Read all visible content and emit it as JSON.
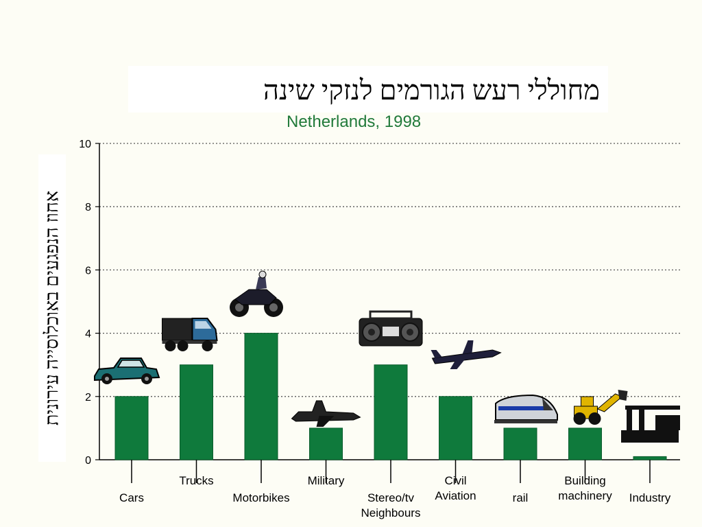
{
  "colors": {
    "bar": "#0f7a3c",
    "bar_dark": "#0a5c2c",
    "subtitle": "#217a3a",
    "grid": "#555555"
  },
  "chart_data": {
    "type": "bar",
    "title": "מחוללי רעש הגורמים לנזקי שינה",
    "subtitle": "Netherlands, 1998",
    "ylabel": "אחוז הנפגעים באוכלוסייה עירונית",
    "xlabel": "",
    "ylim": [
      0,
      10
    ],
    "yticks": [
      "0",
      "2",
      "4",
      "6",
      "8",
      "10"
    ],
    "grid": true,
    "categories": [
      "Cars",
      "Trucks",
      "Motorbikes",
      "Military",
      "Stereo/tv Neighbours",
      "Civil Aviation",
      "rail",
      "Building machinery",
      "Industry"
    ],
    "values": [
      2,
      3,
      4,
      1,
      3,
      2,
      1,
      1,
      0.1
    ],
    "icons": [
      "car-icon",
      "truck-icon",
      "motorbike-icon",
      "fighter-jet-icon",
      "boombox-icon",
      "airliner-icon",
      "train-icon",
      "bulldozer-icon",
      "factory-icon"
    ]
  }
}
